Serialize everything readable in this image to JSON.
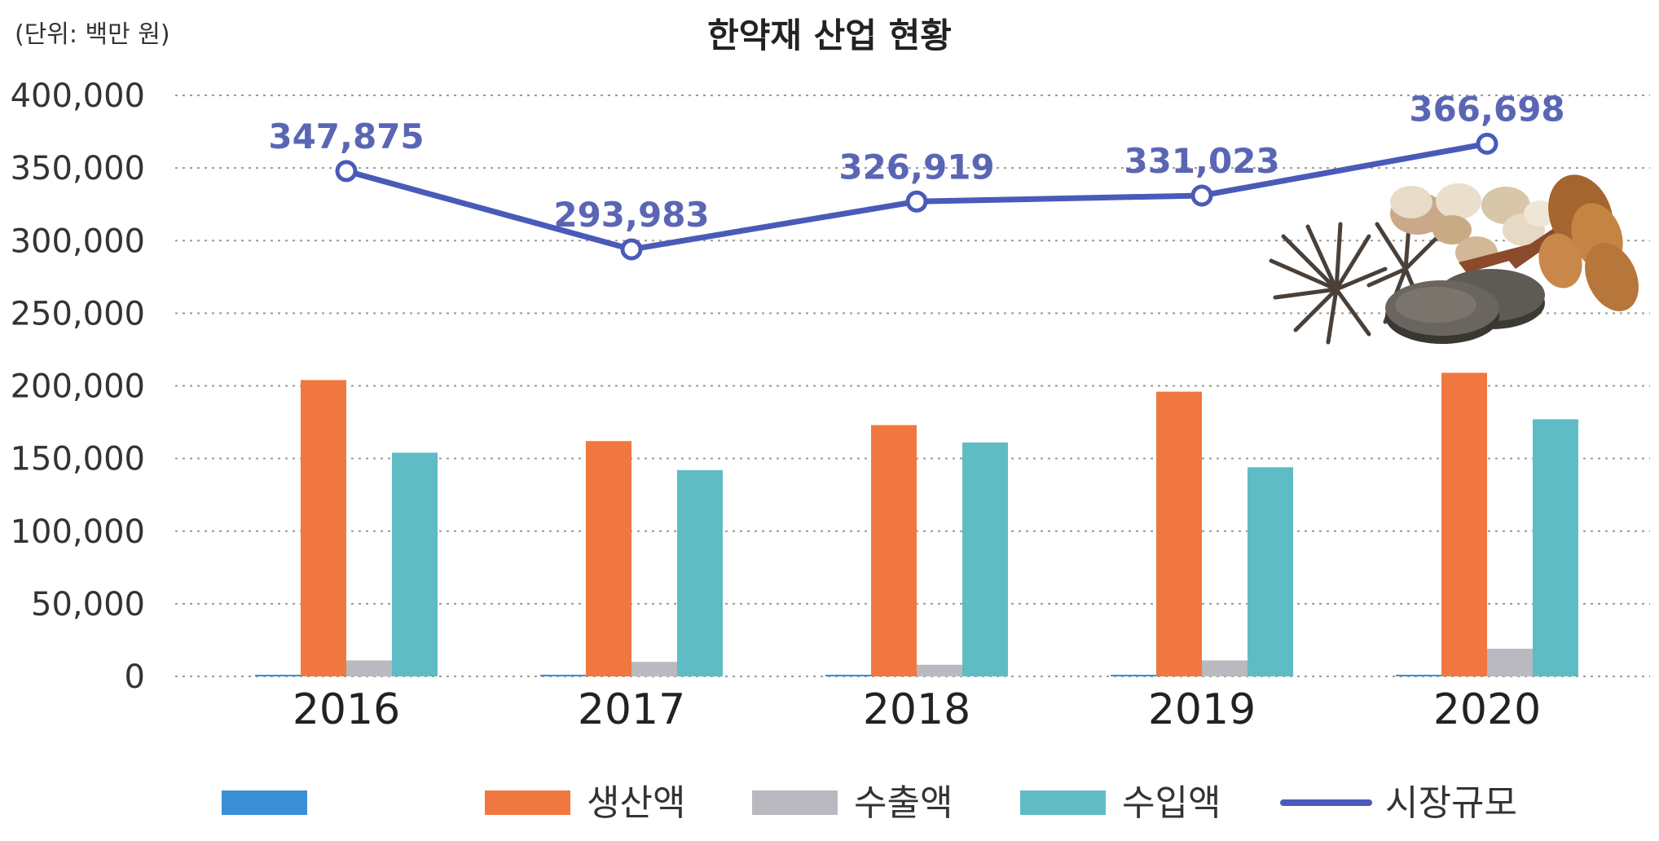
{
  "chart_data": {
    "type": "bar",
    "title": "한약재 산업 현황",
    "unit_label": "(단위: 백만 원)",
    "categories": [
      "2016",
      "2017",
      "2018",
      "2019",
      "2020"
    ],
    "ylim": [
      0,
      400000
    ],
    "yticks": [
      0,
      50000,
      100000,
      150000,
      200000,
      250000,
      300000,
      350000,
      400000
    ],
    "ytick_labels": [
      "0",
      "50,000",
      "100,000",
      "150,000",
      "200,000",
      "250,000",
      "300,000",
      "350,000",
      "400,000"
    ],
    "grid": true,
    "grid_style": "dotted horizontal",
    "legend_position": "bottom",
    "series": [
      {
        "name": "",
        "kind": "bar",
        "color": "#3a8fd6",
        "values": [
          1000,
          1000,
          1000,
          1000,
          1000
        ]
      },
      {
        "name": "생산액",
        "kind": "bar",
        "color": "#f07840",
        "values": [
          204000,
          162000,
          173000,
          196000,
          209000
        ]
      },
      {
        "name": "수출액",
        "kind": "bar",
        "color": "#b9b9bf",
        "values": [
          11000,
          10000,
          8000,
          11000,
          19000
        ]
      },
      {
        "name": "수입액",
        "kind": "bar",
        "color": "#5fbcc4",
        "values": [
          154000,
          142000,
          161000,
          144000,
          177000
        ]
      },
      {
        "name": "시장규모",
        "kind": "line",
        "color": "#4a5ab8",
        "values": [
          347875,
          293983,
          326919,
          331023,
          366698
        ],
        "labels": [
          "347,875",
          "293,983",
          "326,919",
          "331,023",
          "366,698"
        ]
      }
    ]
  }
}
